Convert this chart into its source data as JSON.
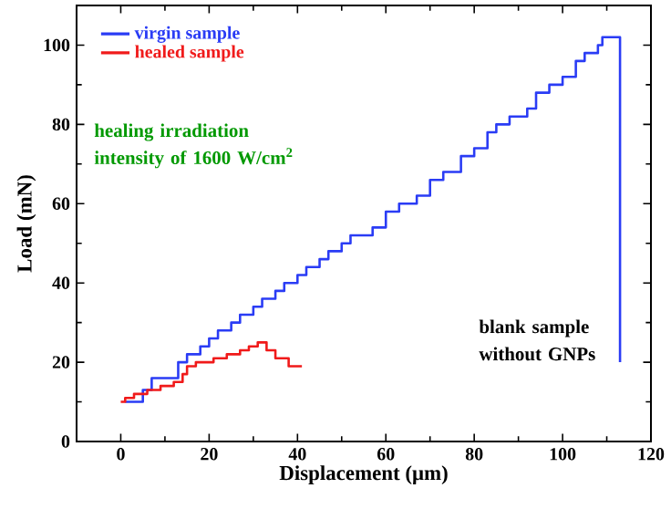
{
  "chart_data": {
    "type": "step",
    "xlabel": "Displacement (μm)",
    "ylabel": "Load (mN)",
    "xlim": [
      -10,
      120
    ],
    "ylim": [
      0,
      110
    ],
    "xticks": [
      0,
      20,
      40,
      60,
      80,
      100,
      120
    ],
    "yticks": [
      0,
      20,
      40,
      60,
      80,
      100
    ],
    "legend": "top left",
    "grid": false,
    "marker": "none",
    "line_style": "solid",
    "series": [
      {
        "name": "virgin sample",
        "color": "#2a3cf5",
        "x": [
          1,
          3,
          5,
          7,
          11,
          13,
          15,
          18,
          20,
          22,
          25,
          27,
          30,
          32,
          35,
          37,
          40,
          42,
          45,
          47,
          50,
          52,
          55,
          57,
          60,
          63,
          67,
          70,
          73,
          77,
          80,
          83,
          85,
          88,
          92,
          94,
          97,
          100,
          103,
          105,
          108,
          109,
          112,
          113
        ],
        "values": [
          10,
          10,
          13,
          16,
          16,
          20,
          22,
          24,
          26,
          28,
          30,
          32,
          34,
          36,
          38,
          40,
          42,
          44,
          46,
          48,
          50,
          52,
          52,
          54,
          58,
          60,
          62,
          66,
          68,
          72,
          74,
          78,
          80,
          82,
          84,
          88,
          90,
          92,
          96,
          98,
          100,
          102,
          102,
          20
        ]
      },
      {
        "name": "healed sample",
        "color": "#f01a1a",
        "x": [
          0,
          1,
          3,
          6,
          9,
          12,
          14,
          15,
          17,
          21,
          24,
          27,
          29,
          31,
          33,
          35,
          38,
          41
        ],
        "values": [
          10,
          11,
          12,
          13,
          14,
          15,
          17,
          19,
          20,
          21,
          22,
          23,
          24,
          25,
          23,
          21,
          19,
          19
        ]
      }
    ],
    "annotations": [
      "healing irradiation intensity of 1600 W/cm$^{2}$",
      "blank sample without GNPs"
    ]
  }
}
